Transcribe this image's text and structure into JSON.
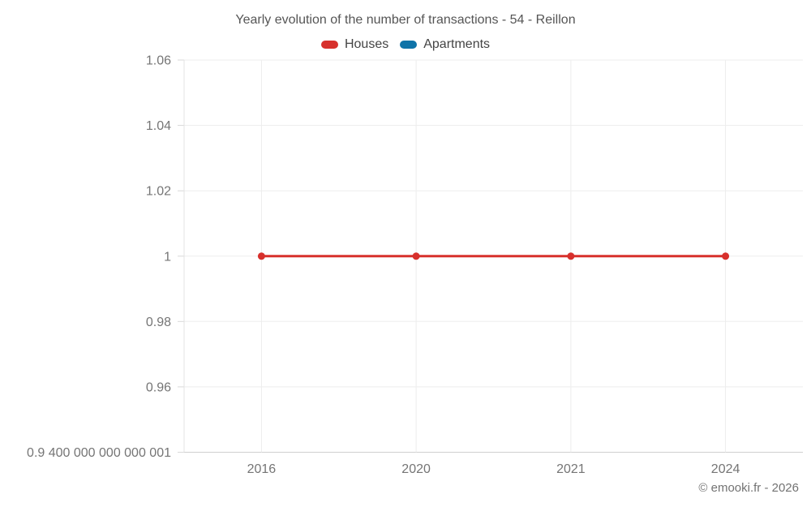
{
  "title": "Yearly evolution of the number of transactions - 54 - Reillon",
  "attribution": "© emooki.fr - 2026",
  "colors": {
    "houses": "#d7302c",
    "apartments": "#0e73a8",
    "grid": "#ededed",
    "axis_left": "#e3e3e3",
    "axis_bottom": "#cfcfcf",
    "tick_mark": "#d9d9d9",
    "tick_text": "#757575",
    "title_text": "#555555"
  },
  "chart_data": {
    "type": "line",
    "title": "Yearly evolution of the number of transactions - 54 - Reillon",
    "categories": [
      "2016",
      "2020",
      "2021",
      "2024"
    ],
    "series": [
      {
        "name": "Houses",
        "color": "#d7302c",
        "values": [
          1,
          1,
          1,
          1
        ]
      },
      {
        "name": "Apartments",
        "color": "#0e73a8",
        "values": []
      }
    ],
    "xlabel": "",
    "ylabel": "",
    "ylim": [
      0.9400000000000001,
      1.06
    ],
    "yticks": [
      0.9400000000000001,
      0.96,
      0.98,
      1,
      1.02,
      1.04,
      1.06
    ],
    "ytick_labels": [
      "0.9 400 000 000 000 001",
      "0.96",
      "0.98",
      "1",
      "1.02",
      "1.04",
      "1.06"
    ],
    "grid": true,
    "legend_position": "top"
  }
}
